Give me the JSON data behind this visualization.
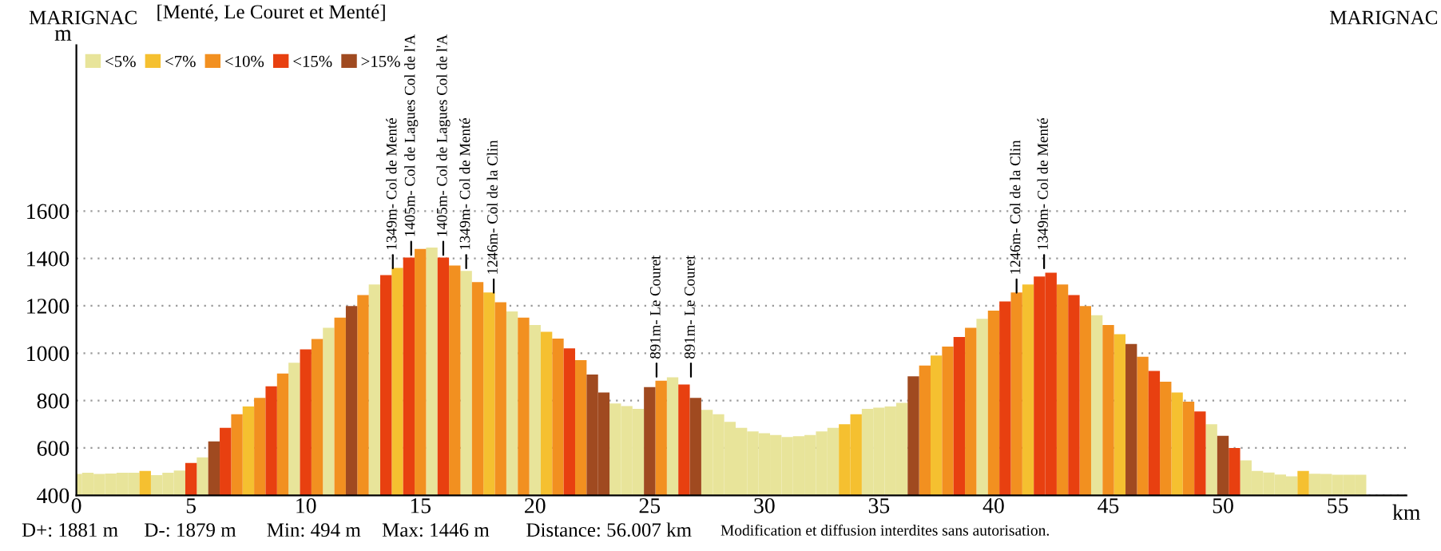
{
  "chart_data": {
    "type": "bar",
    "title": "[Menté, Le Couret et Menté]",
    "xlabel": "km",
    "ylabel": "m",
    "xlim": [
      0,
      58
    ],
    "xticks": [
      0,
      5,
      10,
      15,
      20,
      25,
      30,
      35,
      40,
      45,
      50,
      55
    ],
    "ylim": [
      400,
      2300
    ],
    "yticks": [
      400,
      600,
      800,
      1000,
      1200,
      1400,
      1600
    ],
    "grid": "y",
    "legend": "top left",
    "series": [
      {
        "name": "<5%",
        "color": "#e8e49a",
        "x": [
          0,
          0.5,
          1,
          1.5,
          2,
          2.5,
          3.5,
          4,
          4.5,
          5.5,
          9.5,
          11,
          13,
          15.5,
          17,
          19,
          20,
          23.5,
          24,
          24.5,
          26,
          27.5,
          28,
          28.5,
          29,
          29.5,
          30,
          30.5,
          31,
          31.5,
          32,
          32.5,
          33,
          34.5,
          35,
          35.5,
          36,
          39.5,
          44.5,
          49.5,
          51,
          51.5,
          52,
          52.5,
          53,
          54,
          54.5,
          55,
          55.5,
          56
        ],
        "values": [
          490,
          495,
          490,
          492,
          495,
          495,
          485,
          495,
          505,
          560,
          960,
          1107,
          1290,
          1446,
          1347,
          1176,
          1119,
          788,
          777,
          765,
          898,
          761,
          742,
          710,
          685,
          670,
          662,
          655,
          646,
          650,
          655,
          670,
          685,
          765,
          770,
          775,
          790,
          1145,
          1160,
          700,
          548,
          503,
          496,
          488,
          480,
          491,
          490,
          487,
          487,
          487
        ]
      },
      {
        "name": "<7%",
        "color": "#f5c030",
        "x": [
          3,
          7.5,
          14,
          18,
          20.5,
          33.5,
          34,
          37.5,
          41.5,
          45.5,
          48,
          53.5
        ],
        "values": [
          503,
          775,
          1360,
          1256,
          1090,
          700,
          742,
          990,
          1290,
          1080,
          834,
          503
        ]
      },
      {
        "name": "<10%",
        "color": "#f29020",
        "x": [
          7,
          8,
          9,
          10.5,
          11.5,
          12.5,
          15,
          16.5,
          17.5,
          18.5,
          19.5,
          21,
          22,
          25.5,
          37,
          38,
          39,
          40,
          41,
          43,
          44,
          45,
          46.5,
          47.5,
          48.5
        ],
        "values": [
          742,
          811,
          914,
          1060,
          1150,
          1245,
          1440,
          1370,
          1300,
          1215,
          1150,
          1062,
          971,
          884,
          948,
          1028,
          1107,
          1180,
          1256,
          1290,
          1199,
          1119,
          985,
          880,
          795
        ]
      },
      {
        "name": "<15%",
        "color": "#e84010",
        "x": [
          5,
          6.5,
          8.5,
          10,
          13.5,
          14.5,
          16,
          21.5,
          26.5,
          38.5,
          40.5,
          42,
          42.5,
          43.5,
          47,
          49,
          50.5
        ],
        "values": [
          537,
          685,
          860,
          1016,
          1330,
          1404,
          1404,
          1020,
          868,
          1068,
          1218,
          1324,
          1340,
          1245,
          925,
          754,
          600
        ]
      },
      {
        "name": ">15%",
        "color": "#a04a20",
        "x": [
          6,
          12,
          22.5,
          23,
          25,
          27,
          36.5,
          46,
          50
        ],
        "values": [
          628,
          1199,
          910,
          834,
          857,
          811,
          902,
          1039,
          651
        ]
      }
    ],
    "annotations": [
      {
        "text": "1349m- Col de Menté",
        "x": 13.8,
        "y": 1349
      },
      {
        "text": "1405m- Col de Lagues Col de l'A",
        "x": 14.6,
        "y": 1405
      },
      {
        "text": "1405m- Col de Lagues Col de l'A",
        "x": 16.0,
        "y": 1405
      },
      {
        "text": "1349m- Col de Menté",
        "x": 17.0,
        "y": 1349
      },
      {
        "text": "1246m- Col de la Clin",
        "x": 18.2,
        "y": 1246
      },
      {
        "text": "891m- Le Couret",
        "x": 25.3,
        "y": 891
      },
      {
        "text": "891m- Le Couret",
        "x": 26.8,
        "y": 891
      },
      {
        "text": "1246m- Col de la Clin",
        "x": 41.0,
        "y": 1246
      },
      {
        "text": "1349m- Col de Menté",
        "x": 42.2,
        "y": 1349
      },
      "MARIGNAC",
      "MARIGNAC",
      "D+: 1881 m",
      "D-: 1879 m",
      "Min: 494 m",
      "Max: 1446 m",
      "Distance: 56.007 km",
      "Modification et diffusion interdites sans autorisation."
    ]
  }
}
